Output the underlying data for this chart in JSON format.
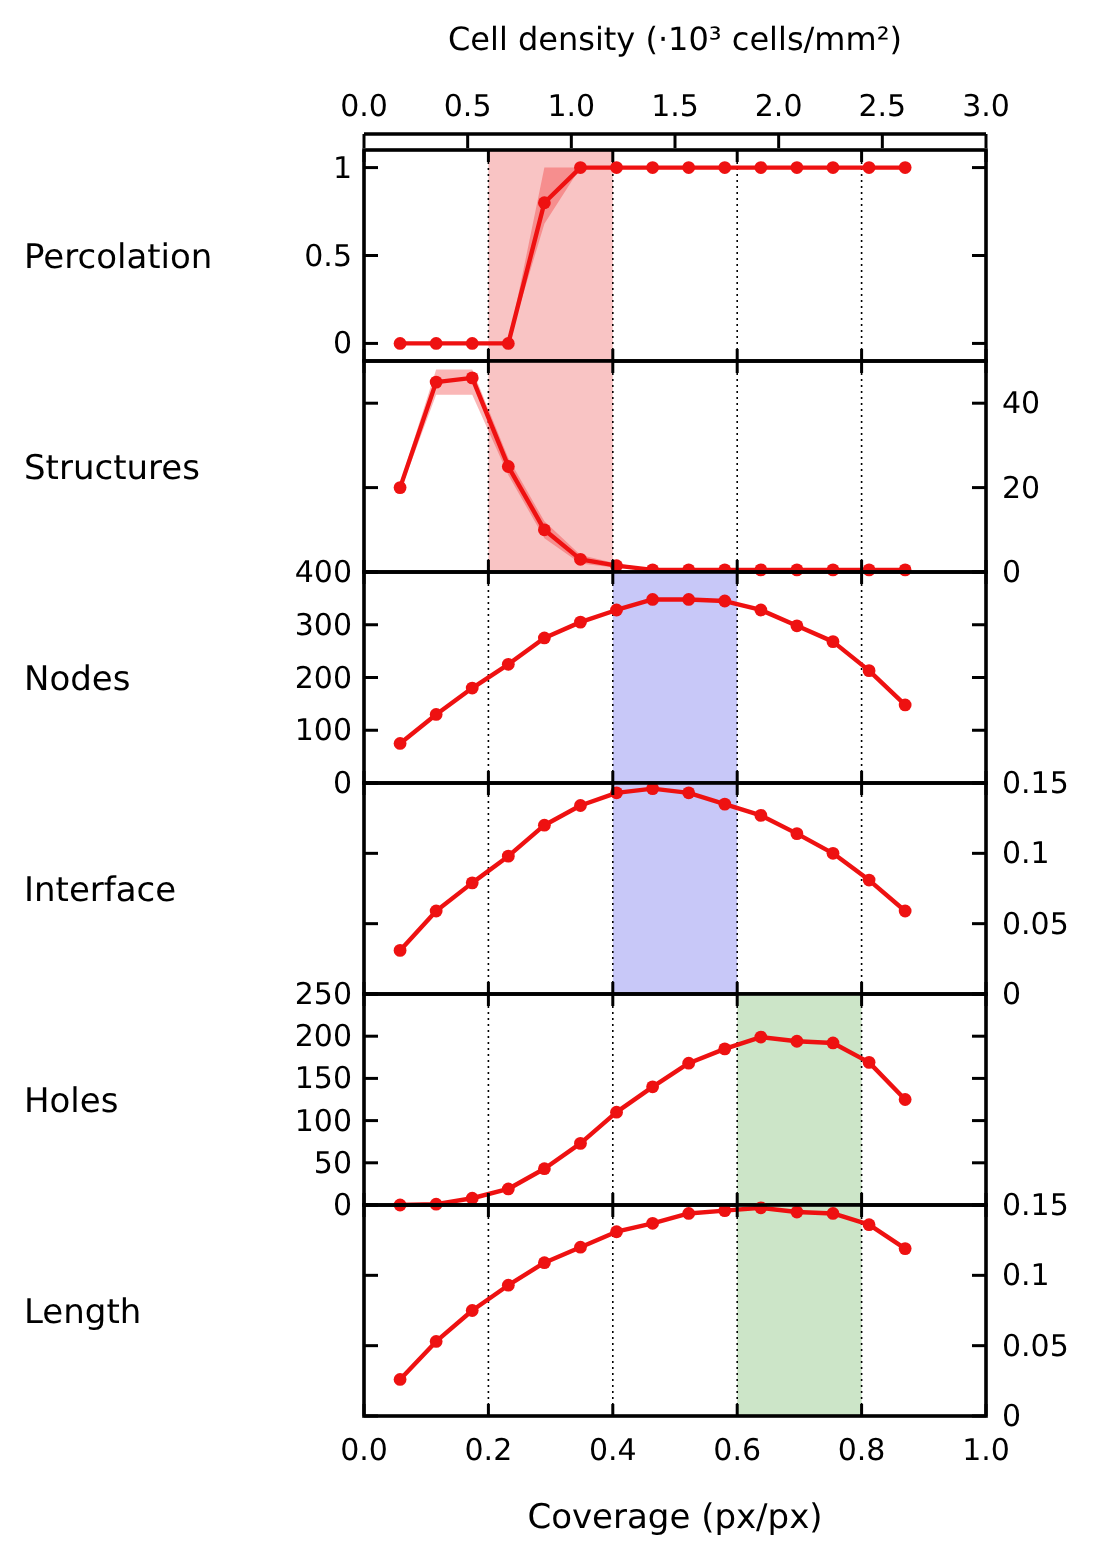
{
  "chart_data": [
    {
      "type": "line",
      "ylabel": "Percolation",
      "x2label": "Cell density (·10³ cells/mm²)",
      "x2lim": [
        0,
        3
      ],
      "x2ticks": [
        {
          "value": 0,
          "label": "0.0"
        },
        {
          "value": 0.5,
          "label": "0.5"
        },
        {
          "value": 1,
          "label": "1.0"
        },
        {
          "value": 1.5,
          "label": "1.5"
        },
        {
          "value": 2,
          "label": "2.0"
        },
        {
          "value": 2.5,
          "label": "2.5"
        },
        {
          "value": 3,
          "label": "3.0"
        }
      ],
      "x": [
        0.058,
        0.116,
        0.174,
        0.232,
        0.29,
        0.348,
        0.406,
        0.464,
        0.522,
        0.58,
        0.638,
        0.696,
        0.754,
        0.812,
        0.87
      ],
      "xlim": [
        0,
        1
      ],
      "xticks": [
        0,
        0.2,
        0.4,
        0.6,
        0.8,
        1
      ],
      "ylim": [
        -0.1,
        1.1
      ],
      "yticks": [
        0,
        0.5,
        1
      ],
      "tick_labels": "y",
      "grid": "x",
      "marker": "circle",
      "bands": [
        {
          "axis": "x",
          "from": 0.2,
          "to": 0.4,
          "color": "#f9c4c4"
        }
      ],
      "series": [
        {
          "color": "#ee1111",
          "values": [
            0,
            0,
            0,
            0,
            0.8,
            1,
            1,
            1,
            1,
            1,
            1,
            1,
            1,
            1,
            1
          ],
          "lower": [
            0,
            0,
            0,
            0,
            0.68,
            1,
            1,
            1,
            1,
            1,
            1,
            1,
            1,
            1,
            1
          ],
          "upper": [
            0,
            0,
            0,
            0,
            1,
            1,
            1,
            1,
            1,
            1,
            1,
            1,
            1,
            1,
            1
          ]
        }
      ]
    },
    {
      "type": "line",
      "ylabel": "Structures",
      "x": [
        0.058,
        0.116,
        0.174,
        0.232,
        0.29,
        0.348,
        0.406,
        0.464,
        0.522,
        0.58,
        0.638,
        0.696,
        0.754,
        0.812,
        0.87
      ],
      "xlim": [
        0,
        1
      ],
      "xticks": [
        0,
        0.2,
        0.4,
        0.6,
        0.8,
        1
      ],
      "y2lim": [
        0,
        50
      ],
      "y2ticks": [
        0,
        20,
        40
      ],
      "tick_labels": "y",
      "grid": "x",
      "marker": "circle",
      "bands": [
        {
          "axis": "x",
          "from": 0.2,
          "to": 0.4,
          "color": "#f9c4c4"
        }
      ],
      "series": [
        {
          "color": "#ee1111",
          "axis": "y2",
          "values": [
            20,
            45,
            46,
            25,
            10,
            3,
            1.5,
            0.5,
            0.5,
            0.5,
            0.5,
            0.5,
            0.5,
            0.5,
            0.5
          ],
          "lower": [
            19,
            42,
            42,
            23,
            8,
            2,
            1,
            0.3,
            0.3,
            0.3,
            0.3,
            0.3,
            0.3,
            0.3,
            0.3
          ],
          "upper": [
            21,
            48,
            48,
            27,
            12,
            4,
            2,
            0.7,
            0.7,
            0.7,
            0.7,
            0.7,
            0.7,
            0.7,
            0.7
          ]
        }
      ]
    },
    {
      "type": "line",
      "ylabel": "Nodes",
      "x": [
        0.058,
        0.116,
        0.174,
        0.232,
        0.29,
        0.348,
        0.406,
        0.464,
        0.522,
        0.58,
        0.638,
        0.696,
        0.754,
        0.812,
        0.87
      ],
      "xlim": [
        0,
        1
      ],
      "xticks": [
        0,
        0.2,
        0.4,
        0.6,
        0.8,
        1
      ],
      "ylim": [
        0,
        400
      ],
      "yticks": [
        0,
        100,
        200,
        300,
        400
      ],
      "tick_labels": "y",
      "grid": "x",
      "marker": "circle",
      "bands": [
        {
          "axis": "x",
          "from": 0.4,
          "to": 0.6,
          "color": "#c8c8f8"
        }
      ],
      "series": [
        {
          "color": "#ee1111",
          "values": [
            75,
            130,
            180,
            225,
            275,
            305,
            328,
            348,
            348,
            345,
            328,
            298,
            268,
            213,
            148
          ]
        }
      ]
    },
    {
      "type": "line",
      "ylabel": "Interface",
      "x": [
        0.058,
        0.116,
        0.174,
        0.232,
        0.29,
        0.348,
        0.406,
        0.464,
        0.522,
        0.58,
        0.638,
        0.696,
        0.754,
        0.812,
        0.87
      ],
      "xlim": [
        0,
        1
      ],
      "xticks": [
        0,
        0.2,
        0.4,
        0.6,
        0.8,
        1
      ],
      "y2lim": [
        0,
        0.15
      ],
      "y2ticks": [
        0,
        0.05,
        0.1,
        0.15
      ],
      "tick_labels": "y",
      "grid": "x",
      "marker": "circle",
      "bands": [
        {
          "axis": "x",
          "from": 0.4,
          "to": 0.6,
          "color": "#c8c8f8"
        }
      ],
      "series": [
        {
          "color": "#ee1111",
          "axis": "y2",
          "values": [
            0.031,
            0.059,
            0.079,
            0.098,
            0.12,
            0.134,
            0.143,
            0.146,
            0.143,
            0.135,
            0.127,
            0.114,
            0.1,
            0.081,
            0.059
          ]
        }
      ]
    },
    {
      "type": "line",
      "ylabel": "Holes",
      "x": [
        0.058,
        0.116,
        0.174,
        0.232,
        0.29,
        0.348,
        0.406,
        0.464,
        0.522,
        0.58,
        0.638,
        0.696,
        0.754,
        0.812,
        0.87
      ],
      "xlim": [
        0,
        1
      ],
      "xticks": [
        0,
        0.2,
        0.4,
        0.6,
        0.8,
        1
      ],
      "ylim": [
        0,
        250
      ],
      "yticks": [
        0,
        50,
        100,
        150,
        200,
        250
      ],
      "tick_labels": "y",
      "grid": "x",
      "marker": "circle",
      "bands": [
        {
          "axis": "x",
          "from": 0.6,
          "to": 0.8,
          "color": "#cce5c8"
        }
      ],
      "series": [
        {
          "color": "#ee1111",
          "values": [
            0,
            1,
            8,
            19,
            43,
            73,
            110,
            140,
            168,
            185,
            199,
            194,
            192,
            169,
            125
          ]
        }
      ]
    },
    {
      "type": "line",
      "ylabel": "Length",
      "xlabel": "Coverage (px/px)",
      "x": [
        0.058,
        0.116,
        0.174,
        0.232,
        0.29,
        0.348,
        0.406,
        0.464,
        0.522,
        0.58,
        0.638,
        0.696,
        0.754,
        0.812,
        0.87
      ],
      "xlim": [
        0,
        1
      ],
      "xticks": [
        {
          "value": 0,
          "label": "0.0"
        },
        {
          "value": 0.2,
          "label": "0.2"
        },
        {
          "value": 0.4,
          "label": "0.4"
        },
        {
          "value": 0.6,
          "label": "0.6"
        },
        {
          "value": 0.8,
          "label": "0.8"
        },
        {
          "value": 1,
          "label": "1.0"
        }
      ],
      "y2lim": [
        0,
        0.15
      ],
      "y2ticks": [
        0,
        0.05,
        0.1,
        0.15
      ],
      "grid": "x",
      "marker": "circle",
      "bands": [
        {
          "axis": "x",
          "from": 0.6,
          "to": 0.8,
          "color": "#cce5c8"
        }
      ],
      "series": [
        {
          "color": "#ee1111",
          "axis": "y2",
          "values": [
            0.026,
            0.053,
            0.075,
            0.093,
            0.109,
            0.12,
            0.131,
            0.137,
            0.144,
            0.146,
            0.148,
            0.145,
            0.144,
            0.136,
            0.119
          ]
        }
      ]
    }
  ]
}
